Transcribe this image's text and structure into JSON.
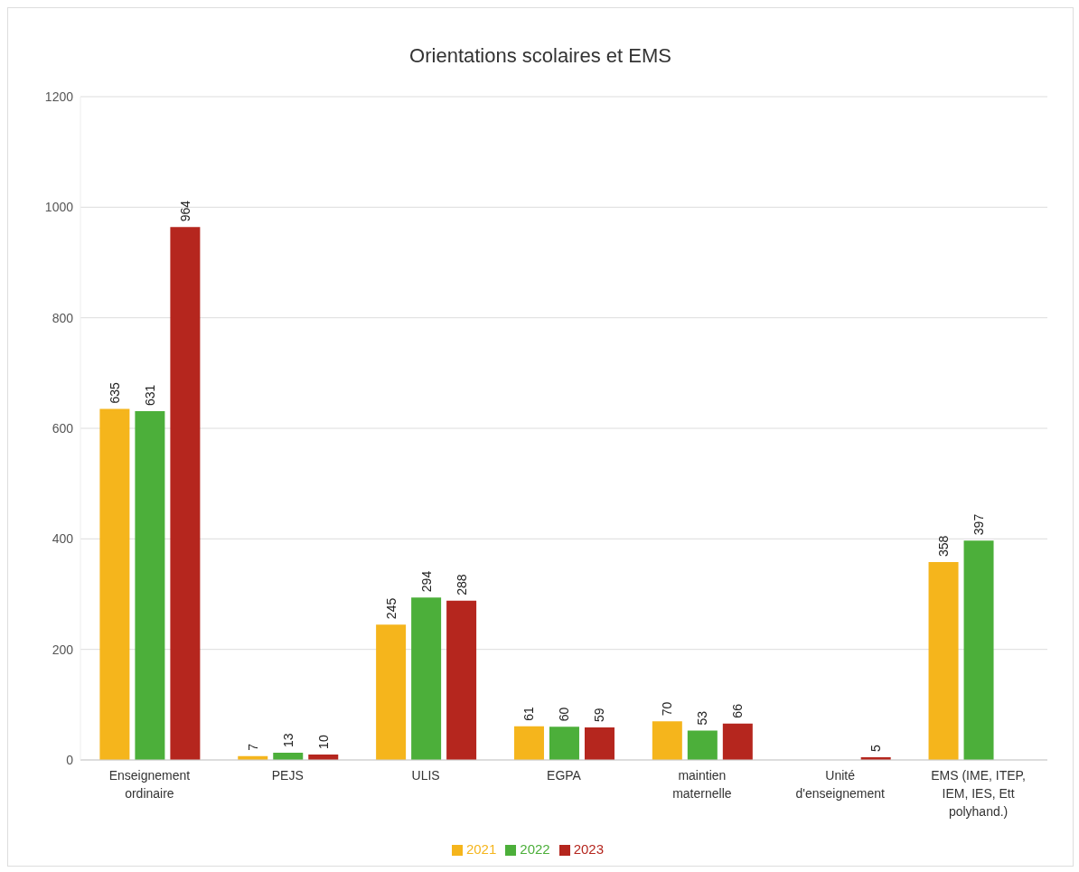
{
  "chart_data": {
    "type": "bar",
    "title": "Orientations scolaires et EMS",
    "categories": [
      "Enseignement ordinaire",
      "PEJS",
      "ULIS",
      "EGPA",
      "maintien maternelle",
      "Unité d'enseignement",
      "EMS (IME, ITEP, IEM, IES, Ett polyhand.)"
    ],
    "series": [
      {
        "name": "2021",
        "color": "#f5b51c",
        "values": [
          635,
          7,
          245,
          61,
          70,
          null,
          358
        ]
      },
      {
        "name": "2022",
        "color": "#4caf3a",
        "values": [
          631,
          13,
          294,
          60,
          53,
          null,
          397
        ]
      },
      {
        "name": "2023",
        "color": "#b5261e",
        "values": [
          964,
          10,
          288,
          59,
          66,
          5,
          null
        ]
      }
    ],
    "ylim": [
      0,
      1200
    ],
    "yticks": [
      0,
      200,
      400,
      600,
      800,
      1000,
      1200
    ],
    "grid": "y",
    "legend": "bottom",
    "data_labels": true
  }
}
